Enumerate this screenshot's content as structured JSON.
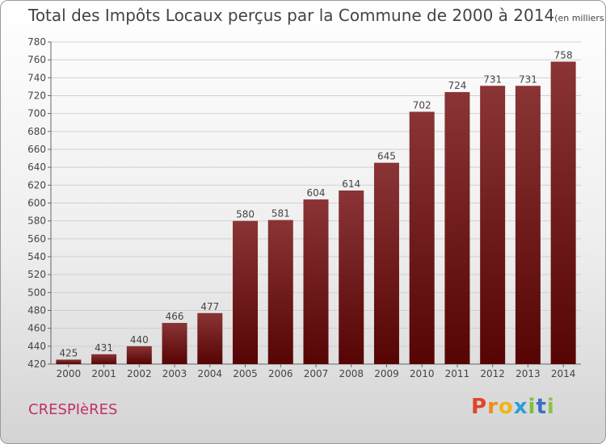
{
  "title": "Total des Impôts Locaux perçus par la Commune de 2000 à 2014",
  "title_unit": "(en milliers d'€)",
  "commune": "CRESPIèRES",
  "logo": {
    "letters": [
      "P",
      "r",
      "o",
      "x",
      "i",
      "t",
      "i"
    ],
    "colors": [
      "#e0452b",
      "#f08a1c",
      "#f0b41a",
      "#2a9fd6",
      "#7cbf3a",
      "#3b6fc4",
      "#8bc34a"
    ]
  },
  "colors": {
    "bar_top": "#8a3436",
    "bar_bottom": "#560404",
    "grid": "#d0d0d0",
    "text": "#444444"
  },
  "chart_data": {
    "type": "bar",
    "title": "Total des Impôts Locaux perçus par la Commune de 2000 à 2014",
    "categories": [
      "2000",
      "2001",
      "2002",
      "2003",
      "2004",
      "2005",
      "2006",
      "2007",
      "2008",
      "2009",
      "2010",
      "2011",
      "2012",
      "2013",
      "2014"
    ],
    "values": [
      425,
      431,
      440,
      466,
      477,
      580,
      581,
      604,
      614,
      645,
      702,
      724,
      731,
      731,
      758
    ],
    "ylim": [
      420,
      780
    ],
    "yticks": [
      420,
      440,
      460,
      480,
      500,
      520,
      540,
      560,
      580,
      600,
      620,
      640,
      660,
      680,
      700,
      720,
      740,
      760,
      780
    ],
    "grid": true
  }
}
